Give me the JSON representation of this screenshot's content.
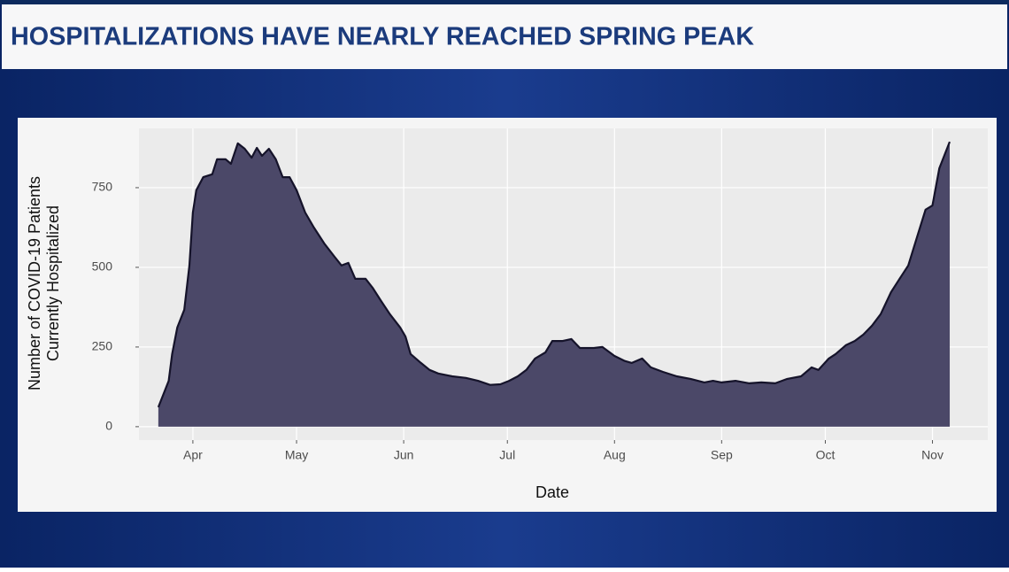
{
  "chart_data": {
    "type": "area",
    "title": "HOSPITALIZATIONS HAVE NEARLY REACHED SPRING PEAK",
    "xlabel": "Date",
    "ylabel": [
      "Number of COVID-19 Patients",
      "Currently Hospitalized"
    ],
    "x": [
      0,
      3,
      4,
      5.5,
      7.5,
      9,
      10,
      11,
      13,
      15.6,
      17,
      19.5,
      21,
      23,
      25,
      27,
      28.5,
      30,
      32,
      34,
      36,
      38,
      40,
      42.5,
      45,
      48,
      51,
      53,
      55,
      57,
      60,
      62,
      64.5,
      67,
      70,
      71.5,
      73,
      76,
      78.5,
      81,
      85,
      89,
      92.5,
      96,
      99,
      101.5,
      104,
      106.5,
      109,
      112,
      114,
      117,
      119.5,
      122,
      126,
      128.5,
      132,
      135,
      137,
      140,
      142.5,
      146,
      150,
      154,
      158,
      160.5,
      163,
      167,
      171,
      174.5,
      178.5,
      182,
      186,
      189,
      191,
      194,
      196,
      199,
      201.5,
      204,
      206.5,
      209,
      212,
      214,
      217,
      219.5,
      222,
      224,
      226,
      229
    ],
    "values": [
      61,
      144,
      228,
      311,
      367,
      506,
      672,
      742,
      783,
      792,
      839,
      839,
      825,
      889,
      872,
      844,
      875,
      850,
      872,
      839,
      783,
      783,
      742,
      672,
      625,
      575,
      533,
      506,
      514,
      464,
      464,
      436,
      394,
      353,
      311,
      283,
      228,
      200,
      178,
      167,
      158,
      153,
      144,
      131,
      133,
      144,
      158,
      178,
      214,
      233,
      269,
      269,
      275,
      247,
      247,
      250,
      222,
      206,
      200,
      214,
      186,
      172,
      158,
      150,
      139,
      144,
      139,
      144,
      136,
      139,
      136,
      150,
      158,
      186,
      178,
      214,
      228,
      256,
      269,
      289,
      317,
      353,
      422,
      456,
      506,
      594,
      681,
      694,
      811,
      894
    ],
    "color": "#4b4868",
    "line_color": "#15132a",
    "xlim": [
      -5.6,
      240
    ],
    "xticks": [
      {
        "value": 10,
        "label": "Apr"
      },
      {
        "value": 40,
        "label": "May"
      },
      {
        "value": 71,
        "label": "Jun"
      },
      {
        "value": 101,
        "label": "Jul"
      },
      {
        "value": 132,
        "label": "Aug"
      },
      {
        "value": 163,
        "label": "Sep"
      },
      {
        "value": 193,
        "label": "Oct"
      },
      {
        "value": 224,
        "label": "Nov"
      }
    ],
    "ylim": [
      -42,
      936
    ],
    "yticks": [
      0,
      250,
      500,
      750
    ],
    "grid": true
  }
}
